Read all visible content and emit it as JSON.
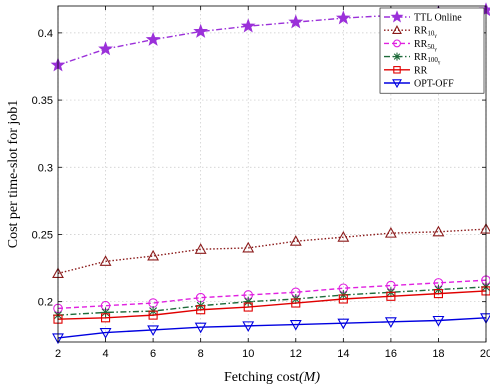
{
  "chart_data": {
    "type": "line",
    "xlabel": "Fetching cost",
    "xlabel_var": "(M)",
    "ylabel": "Cost per time-slot for job1",
    "x": [
      2,
      4,
      6,
      8,
      10,
      12,
      14,
      16,
      18,
      20
    ],
    "xlim": [
      2,
      20
    ],
    "ylim": [
      0.17,
      0.42
    ],
    "xticks": [
      2,
      4,
      6,
      8,
      10,
      12,
      14,
      16,
      18,
      20
    ],
    "yticks": [
      0.2,
      0.25,
      0.3,
      0.35,
      0.4
    ],
    "grid": true,
    "legend": "top-right",
    "series": [
      {
        "name": "TTL Online",
        "name_sub": "",
        "name_sub2": "",
        "color": "#9B30D9",
        "marker": "star",
        "dash": "dashdot",
        "values": [
          0.376,
          0.388,
          0.395,
          0.401,
          0.405,
          0.408,
          0.411,
          0.413,
          0.415,
          0.417
        ]
      },
      {
        "name": "RR",
        "name_sub": "10",
        "name_sub2": "γ",
        "color": "#8B1A1A",
        "marker": "triangle-up",
        "dash": "dotted",
        "values": [
          0.221,
          0.23,
          0.234,
          0.239,
          0.24,
          0.245,
          0.248,
          0.251,
          0.252,
          0.254
        ]
      },
      {
        "name": "RR",
        "name_sub": "50",
        "name_sub2": "γ",
        "color": "#E020E0",
        "marker": "circle",
        "dash": "dashed",
        "values": [
          0.195,
          0.197,
          0.199,
          0.203,
          0.205,
          0.207,
          0.21,
          0.212,
          0.214,
          0.216
        ]
      },
      {
        "name": "RR",
        "name_sub": "100",
        "name_sub2": "γ",
        "color": "#1E6B3A",
        "marker": "asterisk",
        "dash": "dashdot",
        "values": [
          0.19,
          0.192,
          0.193,
          0.197,
          0.2,
          0.202,
          0.205,
          0.207,
          0.209,
          0.211
        ]
      },
      {
        "name": "RR",
        "name_sub": "",
        "name_sub2": "",
        "color": "#E00000",
        "marker": "square",
        "dash": "solid",
        "values": [
          0.187,
          0.188,
          0.19,
          0.194,
          0.196,
          0.199,
          0.202,
          0.204,
          0.206,
          0.208
        ]
      },
      {
        "name": "OPT-OFF",
        "name_sub": "",
        "name_sub2": "",
        "color": "#0000E0",
        "marker": "triangle-down",
        "dash": "solid",
        "values": [
          0.173,
          0.177,
          0.179,
          0.181,
          0.182,
          0.183,
          0.184,
          0.185,
          0.186,
          0.188
        ]
      }
    ]
  }
}
